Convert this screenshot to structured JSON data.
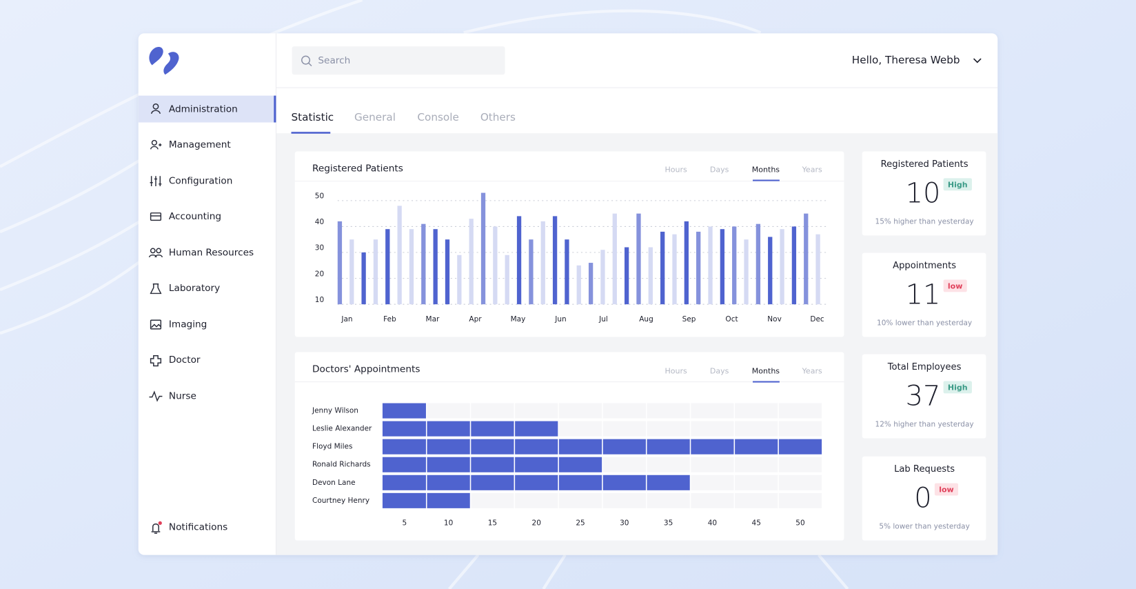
{
  "sidebar": {
    "items": [
      "Administration",
      "Management",
      "Configuration",
      "Accounting",
      "Human Resources",
      "Laboratory",
      "Imaging",
      "Doctor",
      "Nurse"
    ],
    "notifications": "Notifications"
  },
  "header": {
    "search_placeholder": "Search",
    "greeting": "Hello, Theresa Webb"
  },
  "tabs": [
    "Statistic",
    "General",
    "Console",
    "Others"
  ],
  "chart_data": [
    {
      "type": "bar",
      "title": "Registered Patients",
      "filters": [
        "Hours",
        "Days",
        "Months",
        "Years"
      ],
      "values": [
        42,
        35,
        30,
        35,
        39,
        48,
        39,
        41,
        39,
        35,
        29,
        43,
        53,
        40,
        29,
        44,
        35,
        42,
        44,
        35,
        25,
        26,
        31,
        45,
        32,
        45,
        32,
        38,
        37,
        42,
        38,
        40,
        39,
        40,
        35,
        41,
        36,
        39,
        40,
        45,
        37
      ],
      "colors": [
        "#8592dc",
        "#d5daf3",
        "#4f63cf",
        "#d5daf3",
        "#4f63cf",
        "#d5daf3",
        "#d5daf3",
        "#8592dc",
        "#4f63cf",
        "#4f63cf",
        "#d5daf3",
        "#d5daf3",
        "#8592dc",
        "#d5daf3",
        "#d5daf3",
        "#4f63cf",
        "#8592dc",
        "#d5daf3",
        "#4f63cf",
        "#4f63cf",
        "#d5daf3",
        "#8592dc",
        "#d5daf3",
        "#d5daf3",
        "#4f63cf",
        "#8592dc",
        "#d5daf3",
        "#4f63cf",
        "#d5daf3",
        "#4f63cf",
        "#8592dc",
        "#d5daf3",
        "#4f63cf",
        "#8592dc",
        "#d5daf3",
        "#8592dc",
        "#4f63cf",
        "#d5daf3",
        "#4f63cf",
        "#8592dc",
        "#d5daf3"
      ],
      "month_labels": [
        "Jan",
        "Feb",
        "Mar",
        "Apr",
        "May",
        "Jun",
        "Jul",
        "Aug",
        "Sep",
        "Oct",
        "Nov",
        "Dec"
      ],
      "ylim": [
        10,
        55
      ],
      "yticks": [
        10,
        20,
        30,
        40,
        50
      ],
      "grid": true
    },
    {
      "type": "hbar",
      "title": "Doctors' Appointments",
      "filters": [
        "Hours",
        "Days",
        "Months",
        "Years"
      ],
      "categories": [
        "Jenny Wilson",
        "Leslie Alexander",
        "Floyd Miles",
        "Ronald Richards",
        "Devon Lane",
        "Courtney Henry"
      ],
      "values": [
        5,
        20,
        50,
        25,
        35,
        10
      ],
      "color": "#4f63cf",
      "xlim": [
        0,
        50
      ],
      "xticks": [
        5,
        10,
        15,
        20,
        25,
        30,
        35,
        40,
        45,
        50
      ]
    }
  ],
  "cards": [
    {
      "title": "Registered Patients",
      "value": 10,
      "badge": "High",
      "note": "15% higher than yesterday"
    },
    {
      "title": "Appointments",
      "value": 11,
      "badge": "low",
      "note": "10% lower than yesterday"
    },
    {
      "title": "Total Employees",
      "value": 37,
      "badge": "High",
      "note": "12% higher than yesterday"
    },
    {
      "title": "Lab Requests",
      "value": 0,
      "badge": "low",
      "note": "5% lower than yesterday"
    }
  ]
}
